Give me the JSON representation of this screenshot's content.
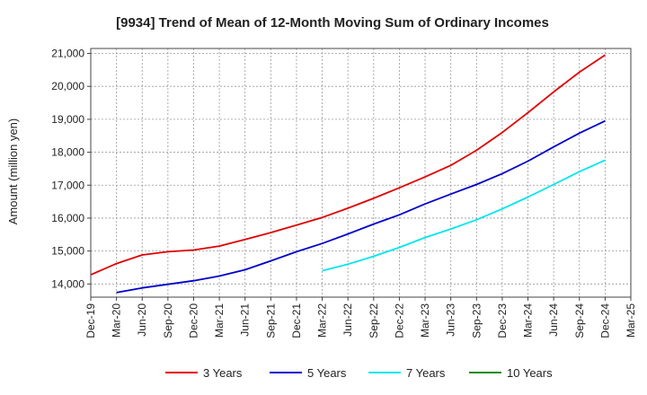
{
  "chart_data": {
    "type": "line",
    "title": "[9934]  Trend of Mean of 12-Month Moving Sum of Ordinary Incomes",
    "xlabel": "",
    "ylabel": "Amount (million yen)",
    "categories": [
      "Dec-19",
      "Mar-20",
      "Jun-20",
      "Sep-20",
      "Dec-20",
      "Mar-21",
      "Jun-21",
      "Sep-21",
      "Dec-21",
      "Mar-22",
      "Jun-22",
      "Sep-22",
      "Dec-22",
      "Mar-23",
      "Jun-23",
      "Sep-23",
      "Dec-23",
      "Mar-24",
      "Jun-24",
      "Sep-24",
      "Dec-24",
      "Mar-25"
    ],
    "yticks": [
      14000,
      15000,
      16000,
      17000,
      18000,
      19000,
      20000,
      21000
    ],
    "ytick_labels": [
      "14,000",
      "15,000",
      "16,000",
      "17,000",
      "18,000",
      "19,000",
      "20,000",
      "21,000"
    ],
    "ylim": [
      13600,
      21150
    ],
    "grid": true,
    "legend_position": "bottom",
    "series": [
      {
        "name": "3 Years",
        "color": "#e00000",
        "values": [
          14280,
          14620,
          14880,
          14980,
          15030,
          15150,
          15350,
          15560,
          15790,
          16020,
          16300,
          16600,
          16920,
          17250,
          17600,
          18060,
          18600,
          19200,
          19830,
          20430,
          20950,
          null
        ]
      },
      {
        "name": "5 Years",
        "color": "#0000cc",
        "values": [
          null,
          13740,
          13880,
          13990,
          14100,
          14240,
          14430,
          14700,
          14980,
          15230,
          15520,
          15820,
          16100,
          16430,
          16730,
          17020,
          17350,
          17730,
          18160,
          18580,
          18950,
          null
        ]
      },
      {
        "name": "7 Years",
        "color": "#00e5ee",
        "values": [
          null,
          null,
          null,
          null,
          null,
          null,
          null,
          null,
          null,
          14400,
          14600,
          14840,
          15110,
          15410,
          15670,
          15950,
          16280,
          16640,
          17020,
          17410,
          17760,
          null
        ]
      },
      {
        "name": "10 Years",
        "color": "#1a8a1a",
        "values": [
          null,
          null,
          null,
          null,
          null,
          null,
          null,
          null,
          null,
          null,
          null,
          null,
          null,
          null,
          null,
          null,
          null,
          null,
          null,
          null,
          null,
          null
        ]
      }
    ]
  }
}
